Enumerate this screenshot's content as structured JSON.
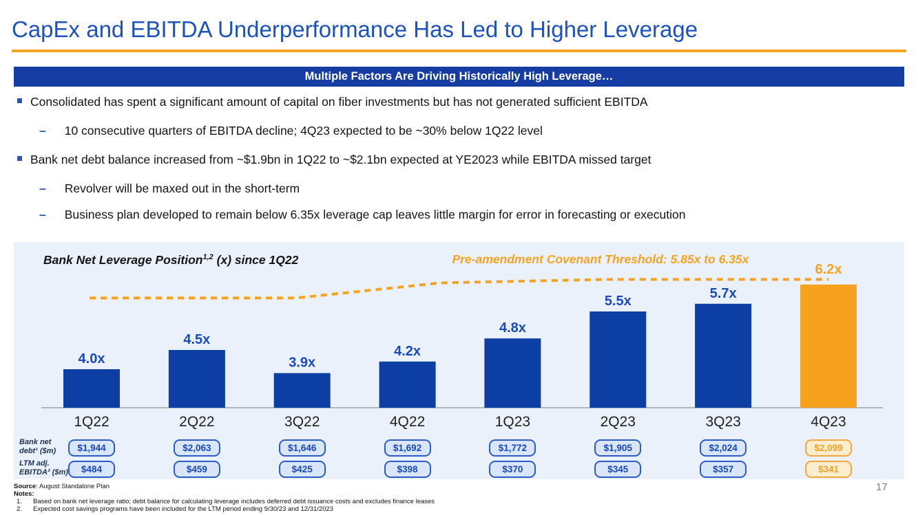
{
  "slide": {
    "title": "CapEx and EBITDA Underperformance Has Led to Higher Leverage",
    "page_number": "17"
  },
  "banner": {
    "text": "Multiple Factors Are Driving Historically High Leverage…"
  },
  "bullets": [
    {
      "level": 1,
      "text": "Consolidated has spent a significant amount of capital on fiber investments but has not generated sufficient EBITDA"
    },
    {
      "level": 2,
      "text": "10 consecutive quarters of EBITDA decline; 4Q23 expected to be ~30% below 1Q22 level"
    },
    {
      "level": 1,
      "text": "Bank net debt balance increased from ~$1.9bn in 1Q22 to ~$2.1bn expected at YE2023 while EBITDA missed target"
    },
    {
      "level": 2,
      "text": "Revolver will be maxed out in the short-term"
    },
    {
      "level": 2,
      "text": "Business plan developed to remain below 6.35x leverage cap leaves little margin for error in forecasting or execution"
    }
  ],
  "chart_data": {
    "type": "bar",
    "title_main": "Bank Net Leverage Position",
    "title_sup": "1,2",
    "title_rest": " (x) since 1Q22",
    "threshold_label": "Pre-amendment Covenant Threshold: 5.85x to 6.35x",
    "threshold_from": 5.85,
    "threshold_to": 6.35,
    "categories": [
      "1Q22",
      "2Q22",
      "3Q22",
      "4Q22",
      "1Q23",
      "2Q23",
      "3Q23",
      "4Q23"
    ],
    "values": [
      4.0,
      4.5,
      3.9,
      4.2,
      4.8,
      5.5,
      5.7,
      6.2
    ],
    "value_labels": [
      "4.0x",
      "4.5x",
      "3.9x",
      "4.2x",
      "4.8x",
      "5.5x",
      "5.7x",
      "6.2x"
    ],
    "highlight_index": 7,
    "ylim": [
      3.0,
      6.6
    ],
    "grid": false,
    "legend": "none",
    "bar_color": "#0C3EA4",
    "highlight_color": "#F7A21E",
    "table_rows": [
      {
        "label_line1": "Bank net",
        "label_line2": "debt¹ ($m)",
        "values": [
          "$1,944",
          "$2,063",
          "$1,646",
          "$1,692",
          "$1,772",
          "$1,905",
          "$2,024",
          "$2,099"
        ]
      },
      {
        "label_line1": "LTM adj.",
        "label_line2": "EBITDA² ($m)",
        "values": [
          "$484",
          "$459",
          "$425",
          "$398",
          "$370",
          "$345",
          "$357",
          "$341"
        ]
      }
    ]
  },
  "footer": {
    "source_label": "Source",
    "source_text": ": August Standalone Plan",
    "notes_label": "Notes:",
    "notes": [
      {
        "num": "1.",
        "text": "Based on bank net leverage ratio; debt balance for calculating leverage includes deferred debt issuance costs and excludes finance leases"
      },
      {
        "num": "2.",
        "text": "Expected cost savings programs have been included for the LTM period ending 9/30/23 and 12/31/2023"
      }
    ]
  },
  "colors": {
    "title_blue": "#1B52C0",
    "banner_bg": "#153DA4",
    "accent_orange": "#F5A623",
    "panel_bg": "#EBF1FA",
    "value_label": "#1949BE",
    "x_label": "#212121",
    "axis": "#A0A4A8"
  }
}
